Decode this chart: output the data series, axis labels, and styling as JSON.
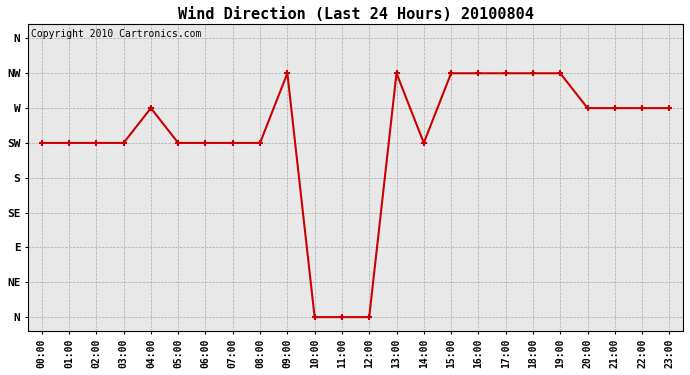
{
  "title": "Wind Direction (Last 24 Hours) 20100804",
  "copyright_text": "Copyright 2010 Cartronics.com",
  "hours": [
    0,
    1,
    2,
    3,
    4,
    5,
    6,
    7,
    8,
    9,
    10,
    11,
    12,
    13,
    14,
    15,
    16,
    17,
    18,
    19,
    20,
    21,
    22,
    23
  ],
  "x_labels": [
    "00:00",
    "01:00",
    "02:00",
    "03:00",
    "04:00",
    "05:00",
    "06:00",
    "07:00",
    "08:00",
    "09:00",
    "10:00",
    "11:00",
    "12:00",
    "13:00",
    "14:00",
    "15:00",
    "16:00",
    "17:00",
    "18:00",
    "19:00",
    "20:00",
    "21:00",
    "22:00",
    "23:00"
  ],
  "wind_values": [
    5,
    5,
    5,
    5,
    6,
    5,
    5,
    5,
    5,
    7,
    0,
    0,
    0,
    7,
    5,
    7,
    7,
    7,
    7,
    7,
    6,
    6,
    6,
    6
  ],
  "y_tick_vals": [
    8,
    7,
    6,
    5,
    4,
    3,
    2,
    1,
    0
  ],
  "y_tick_labels": [
    "N",
    "NW",
    "W",
    "SW",
    "S",
    "SE",
    "E",
    "NE",
    "N"
  ],
  "line_color": "#cc0000",
  "marker_color": "#cc0000",
  "bg_color": "#e8e8e8",
  "grid_color": "#aaaaaa",
  "title_fontsize": 11,
  "copyright_fontsize": 7,
  "ylim_min": -0.4,
  "ylim_max": 8.4,
  "xlim_min": -0.5,
  "xlim_max": 23.5
}
